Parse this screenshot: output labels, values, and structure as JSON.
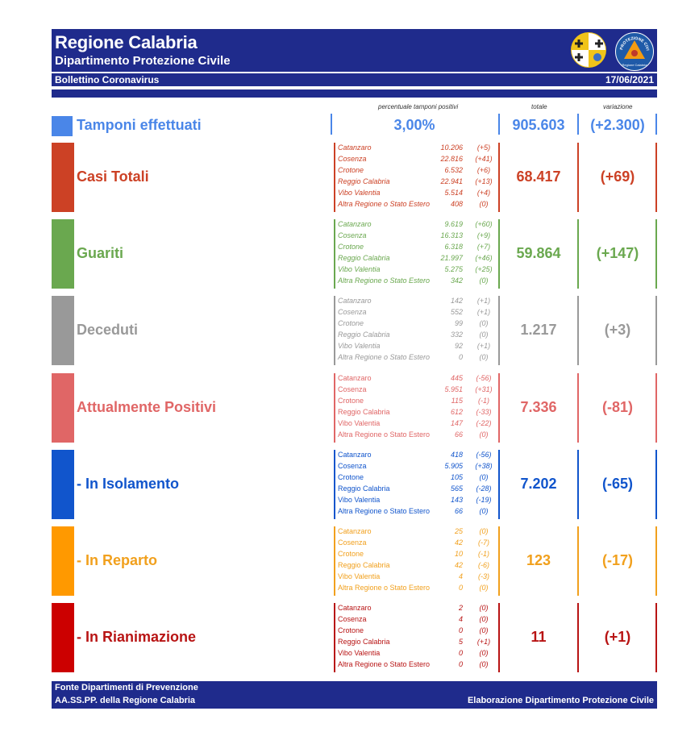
{
  "header": {
    "title": "Regione Calabria",
    "subtitle": "Dipartimento Protezione Civile",
    "bulletin": "Bollettino Coronavirus",
    "date": "17/06/2021",
    "logo_text": "PROTEZIONE CIVILE",
    "logo_text2": "Regione Calabria"
  },
  "columns": {
    "perc": "percentuale tamponi positivi",
    "totale": "totale",
    "variazione": "variazione"
  },
  "tamponi": {
    "label": "Tamponi effettuati",
    "perc": "3,00%",
    "totale": "905.603",
    "variazione": "(+2.300)",
    "color": "#4a86e8"
  },
  "sections": [
    {
      "label": "Casi Totali",
      "color": "#cc4125",
      "bar": "#cc4125",
      "italic": true,
      "totale": "68.417",
      "variazione": "(+69)",
      "rows": [
        {
          "name": "Catanzaro",
          "val": "10.206",
          "delta": "(+5)"
        },
        {
          "name": "Cosenza",
          "val": "22.816",
          "delta": "(+41)"
        },
        {
          "name": "Crotone",
          "val": "6.532",
          "delta": "(+6)"
        },
        {
          "name": "Reggio Calabria",
          "val": "22.941",
          "delta": "(+13)"
        },
        {
          "name": "Vibo Valentia",
          "val": "5.514",
          "delta": "(+4)"
        },
        {
          "name": "Altra Regione o Stato Estero",
          "val": "408",
          "delta": "(0)"
        }
      ]
    },
    {
      "label": "Guariti",
      "color": "#6aa84f",
      "bar": "#6aa84f",
      "italic": true,
      "totale": "59.864",
      "variazione": "(+147)",
      "rows": [
        {
          "name": "Catanzaro",
          "val": "9.619",
          "delta": "(+60)"
        },
        {
          "name": "Cosenza",
          "val": "16.313",
          "delta": "(+9)"
        },
        {
          "name": "Crotone",
          "val": "6.318",
          "delta": "(+7)"
        },
        {
          "name": "Reggio Calabria",
          "val": "21.997",
          "delta": "(+46)"
        },
        {
          "name": "Vibo Valentia",
          "val": "5.275",
          "delta": "(+25)"
        },
        {
          "name": "Altra Regione o Stato Estero",
          "val": "342",
          "delta": "(0)"
        }
      ]
    },
    {
      "label": "Deceduti",
      "color": "#999999",
      "bar": "#999999",
      "italic": true,
      "totale": "1.217",
      "variazione": "(+3)",
      "rows": [
        {
          "name": "Catanzaro",
          "val": "142",
          "delta": "(+1)"
        },
        {
          "name": "Cosenza",
          "val": "552",
          "delta": "(+1)"
        },
        {
          "name": "Crotone",
          "val": "99",
          "delta": "(0)"
        },
        {
          "name": "Reggio Calabria",
          "val": "332",
          "delta": "(0)"
        },
        {
          "name": "Vibo Valentia",
          "val": "92",
          "delta": "(+1)"
        },
        {
          "name": "Altra Regione o Stato Estero",
          "val": "0",
          "delta": "(0)"
        }
      ]
    },
    {
      "label": "Attualmente Positivi",
      "color": "#e06666",
      "bar": "#e06666",
      "italic": false,
      "totale": "7.336",
      "variazione": "(-81)",
      "rows": [
        {
          "name": "Catanzaro",
          "val": "445",
          "delta": "(-56)"
        },
        {
          "name": "Cosenza",
          "val": "5.951",
          "delta": "(+31)"
        },
        {
          "name": "Crotone",
          "val": "115",
          "delta": "(-1)"
        },
        {
          "name": "Reggio Calabria",
          "val": "612",
          "delta": "(-33)"
        },
        {
          "name": "Vibo Valentia",
          "val": "147",
          "delta": "(-22)"
        },
        {
          "name": "Altra Regione o Stato Estero",
          "val": "66",
          "delta": "(0)"
        }
      ]
    },
    {
      "label": "- In Isolamento",
      "color": "#1155cc",
      "bar": "#1155cc",
      "italic": false,
      "totale": "7.202",
      "variazione": "(-65)",
      "rows": [
        {
          "name": "Catanzaro",
          "val": "418",
          "delta": "(-56)"
        },
        {
          "name": "Cosenza",
          "val": "5.905",
          "delta": "(+38)"
        },
        {
          "name": "Crotone",
          "val": "105",
          "delta": "(0)"
        },
        {
          "name": "Reggio Calabria",
          "val": "565",
          "delta": "(-28)"
        },
        {
          "name": "Vibo Valentia",
          "val": "143",
          "delta": "(-19)"
        },
        {
          "name": "Altra Regione o Stato Estero",
          "val": "66",
          "delta": "(0)"
        }
      ]
    },
    {
      "label": "- In Reparto",
      "color": "#f1a01d",
      "bar": "#ff9900",
      "italic": false,
      "totale": "123",
      "variazione": "(-17)",
      "rows": [
        {
          "name": "Catanzaro",
          "val": "25",
          "delta": "(0)"
        },
        {
          "name": "Cosenza",
          "val": "42",
          "delta": "(-7)"
        },
        {
          "name": "Crotone",
          "val": "10",
          "delta": "(-1)"
        },
        {
          "name": "Reggio Calabria",
          "val": "42",
          "delta": "(-6)"
        },
        {
          "name": "Vibo Valentia",
          "val": "4",
          "delta": "(-3)"
        },
        {
          "name": "Altra Regione o Stato Estero",
          "val": "0",
          "delta": "(0)"
        }
      ]
    },
    {
      "label": "- In Rianimazione",
      "color": "#b81414",
      "bar": "#cc0000",
      "italic": false,
      "totale": "11",
      "variazione": "(+1)",
      "rows": [
        {
          "name": "Catanzaro",
          "val": "2",
          "delta": "(0)"
        },
        {
          "name": "Cosenza",
          "val": "4",
          "delta": "(0)"
        },
        {
          "name": "Crotone",
          "val": "0",
          "delta": "(0)"
        },
        {
          "name": "Reggio Calabria",
          "val": "5",
          "delta": "(+1)"
        },
        {
          "name": "Vibo Valentia",
          "val": "0",
          "delta": "(0)"
        },
        {
          "name": "Altra Regione o Stato Estero",
          "val": "0",
          "delta": "(0)"
        }
      ]
    }
  ],
  "footer": {
    "line1": "Fonte Dipartimenti di Prevenzione",
    "line2": "AA.SS.PP.  della Regione Calabria",
    "right": "Elaborazione Dipartimento Protezione Civile"
  }
}
